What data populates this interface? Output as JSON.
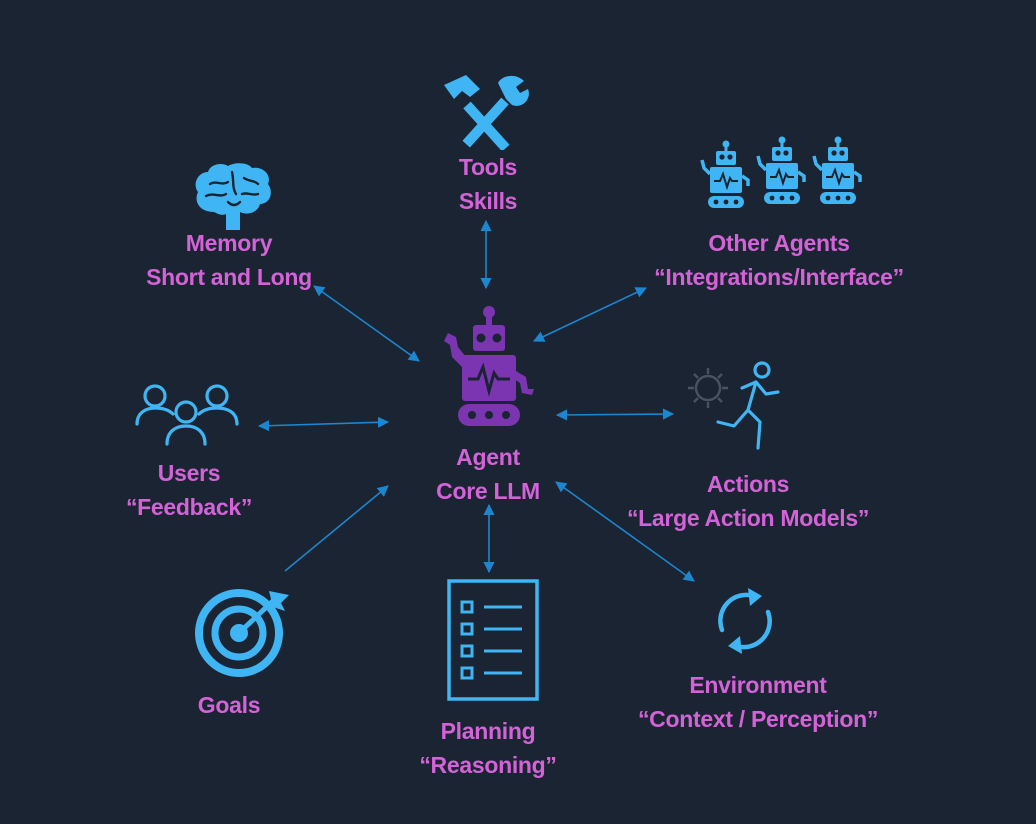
{
  "diagram": {
    "center": {
      "line1": "Agent",
      "line2": "Core LLM"
    },
    "nodes": {
      "tools": {
        "line1": "Tools",
        "line2": "Skills"
      },
      "memory": {
        "line1": "Memory",
        "line2": "Short and Long"
      },
      "agents": {
        "line1": "Other Agents",
        "line2": "“Integrations/Interface”"
      },
      "users": {
        "line1": "Users",
        "line2": "“Feedback”"
      },
      "actions": {
        "line1": "Actions",
        "line2": "“Large Action Models”"
      },
      "goals": {
        "line1": "Goals"
      },
      "planning": {
        "line1": "Planning",
        "line2": "“Reasoning”"
      },
      "environment": {
        "line1": "Environment",
        "line2": "“Context / Perception”"
      }
    },
    "colors": {
      "background": "#1a2433",
      "label": "#d463d8",
      "icon": "#3fb5f3",
      "center_icon": "#7b35b0",
      "arrow": "#1c86cf"
    },
    "icons": {
      "tools": "hammer-wrench-icon",
      "memory": "brain-icon",
      "agents": "robot-group-icon",
      "users": "users-icon",
      "center": "robot-icon",
      "actions": "running-gear-icon",
      "goals": "target-icon",
      "planning": "checklist-icon",
      "environment": "cycle-icon"
    }
  }
}
